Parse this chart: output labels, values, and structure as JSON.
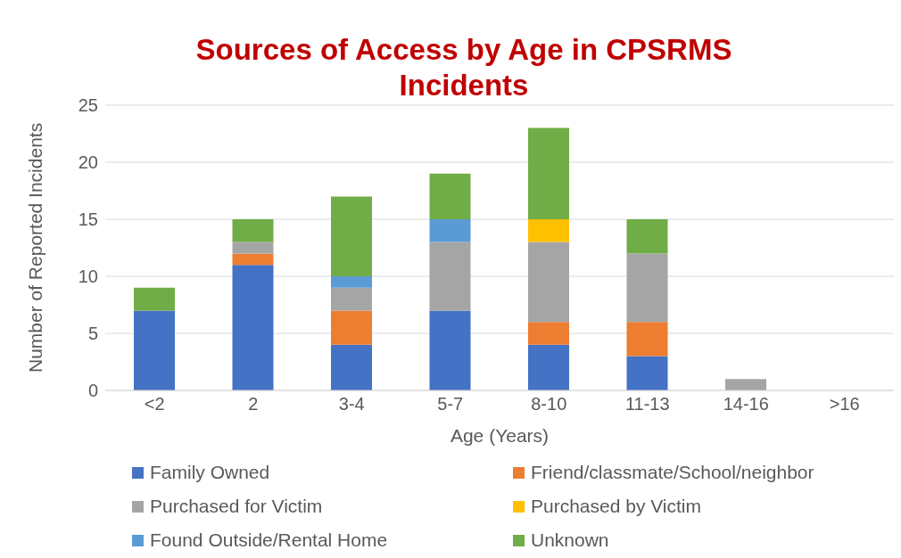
{
  "chart_data": {
    "type": "bar",
    "title": "Sources of Access by Age in CPSRMS Incidents",
    "xlabel": "Age (Years)",
    "ylabel": "Number of Reported Incidents",
    "categories": [
      "<2",
      "2",
      "3-4",
      "5-7",
      "8-10",
      "11-13",
      "14-16",
      ">16"
    ],
    "stacked": true,
    "ylim": [
      0,
      25
    ],
    "yticks": [
      0,
      5,
      10,
      15,
      20,
      25
    ],
    "grid": "y",
    "legend": "bottom",
    "series": [
      {
        "name": "Family Owned",
        "color": "#4472c4",
        "values": [
          7,
          11,
          4,
          7,
          4,
          3,
          0,
          0
        ]
      },
      {
        "name": "Friend/classmate/School/neighbor",
        "color": "#ed7d31",
        "values": [
          0,
          1,
          3,
          0,
          2,
          3,
          0,
          0
        ]
      },
      {
        "name": "Purchased for Victim",
        "color": "#a5a5a5",
        "values": [
          0,
          1,
          2,
          6,
          7,
          6,
          1,
          0
        ]
      },
      {
        "name": "Purchased by Victim",
        "color": "#ffc000",
        "values": [
          0,
          0,
          0,
          0,
          2,
          0,
          0,
          0
        ]
      },
      {
        "name": "Found Outside/Rental Home",
        "color": "#5b9bd5",
        "values": [
          0,
          0,
          1,
          2,
          0,
          0,
          0,
          0
        ]
      },
      {
        "name": "Unknown",
        "color": "#70ad47",
        "values": [
          2,
          2,
          7,
          4,
          8,
          3,
          0,
          0
        ]
      }
    ]
  }
}
